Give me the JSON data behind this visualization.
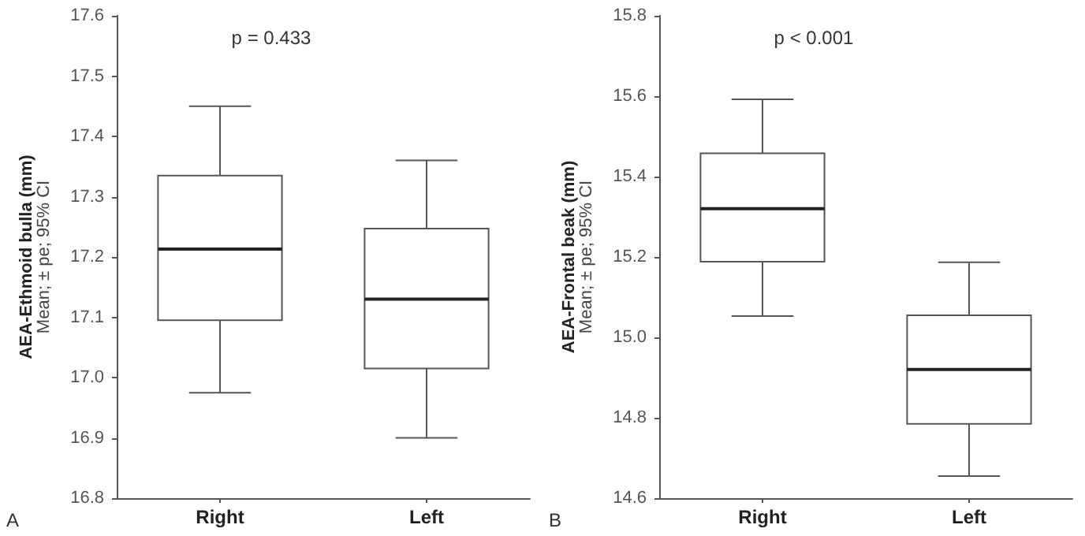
{
  "chart_data": [
    {
      "type": "box",
      "categories": [
        "Right",
        "Left"
      ],
      "ylabel": "AEA-Ethmoid bulla (mm)\nMean; ± pe; 95% CI",
      "ylim": [
        16.8,
        17.6
      ],
      "yticks": [
        16.8,
        16.9,
        {
          "value": 17,
          "label": "17.0"
        },
        17.1,
        17.2,
        17.3,
        17.4,
        17.5,
        17.6
      ],
      "grid": false,
      "annotations": [
        "p = 0.433",
        "A"
      ],
      "boxes": [
        {
          "low": 16.975,
          "q1": 17.095,
          "median": 17.213,
          "q3": 17.335,
          "high": 17.45
        },
        {
          "low": 16.9,
          "q1": 17.015,
          "median": 17.13,
          "q3": 17.247,
          "high": 17.36
        }
      ]
    },
    {
      "type": "box",
      "categories": [
        "Right",
        "Left"
      ],
      "ylabel": "AEA-Frontal beak (mm)\nMean; ± pe; 95% CI",
      "ylim": [
        14.6,
        15.8
      ],
      "yticks": [
        14.6,
        14.8,
        {
          "value": 15,
          "label": "15.0"
        },
        15.2,
        15.4,
        15.6,
        15.8
      ],
      "grid": false,
      "annotations": [
        "p < 0.001",
        "B"
      ],
      "boxes": [
        {
          "low": 15.053,
          "q1": 15.188,
          "median": 15.32,
          "q3": 15.458,
          "high": 15.592
        },
        {
          "low": 14.655,
          "q1": 14.785,
          "median": 14.92,
          "q3": 15.055,
          "high": 15.187
        }
      ]
    }
  ]
}
